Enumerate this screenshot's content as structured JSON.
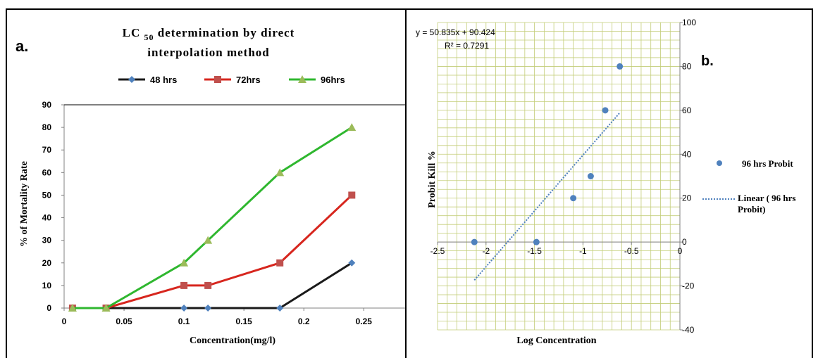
{
  "panel_a": {
    "label": "a.",
    "title_prefix": "LC ",
    "title_sub": "50",
    "title_rest": " determination by direct",
    "title_line2": "interpolation method",
    "xlabel": "Concentration(mg/l)",
    "ylabel": "% of Mortality Rate"
  },
  "panel_b": {
    "label": "b.",
    "equation": "y = 50.835x + 90.424",
    "r_squared": "R² = 0.7291",
    "xlabel": "Log Concentration",
    "ylabel": "Probit Kill %",
    "legend_points": "96 hrs Probit",
    "legend_line_1": "Linear ( 96 hrs",
    "legend_line_2": "Probit)"
  },
  "chart_data": [
    {
      "type": "line",
      "title": "LC 50 determination by direct interpolation method",
      "xlabel": "Concentration(mg/l)",
      "ylabel": "% of Mortality Rate",
      "xlim": [
        0,
        0.25
      ],
      "ylim": [
        0,
        90
      ],
      "xticks": [
        "0",
        "0.05",
        "0.1",
        "0.15",
        "0.2",
        "0.25"
      ],
      "yticks": [
        "0",
        "10",
        "20",
        "30",
        "40",
        "50",
        "60",
        "70",
        "80",
        "90"
      ],
      "legend_position": "top",
      "grid": false,
      "series": [
        {
          "name": "48 hrs",
          "color": "#1a1a1a",
          "marker": "diamond",
          "marker_color": "#4f81bd",
          "x": [
            0.007,
            0.035,
            0.1,
            0.12,
            0.18,
            0.24
          ],
          "y": [
            0,
            0,
            0,
            0,
            0,
            20
          ]
        },
        {
          "name": "72hrs",
          "color": "#d7261e",
          "marker": "square",
          "marker_color": "#c0504d",
          "x": [
            0.007,
            0.035,
            0.1,
            0.12,
            0.18,
            0.24
          ],
          "y": [
            0,
            0,
            10,
            10,
            20,
            50
          ]
        },
        {
          "name": "96hrs",
          "color": "#2fb72f",
          "marker": "triangle",
          "marker_color": "#9bbb59",
          "x": [
            0.007,
            0.035,
            0.1,
            0.12,
            0.18,
            0.24
          ],
          "y": [
            0,
            0,
            20,
            30,
            60,
            80
          ]
        }
      ]
    },
    {
      "type": "scatter",
      "xlabel": "Log Concentration",
      "ylabel": "Probit Kill %",
      "xlim": [
        -2.5,
        0
      ],
      "ylim": [
        -40,
        100
      ],
      "xticks": [
        "-2.5",
        "-2",
        "-1.5",
        "-1",
        "-0.5",
        "0"
      ],
      "yticks": [
        "-40",
        "-20",
        "0",
        "20",
        "40",
        "60",
        "80",
        "100"
      ],
      "grid": true,
      "grid_color": "#c3cd78",
      "legend_position": "right",
      "series": [
        {
          "name": "96 hrs Probit",
          "color": "#4f81bd",
          "x": [
            -2.12,
            -1.48,
            -1.1,
            -0.92,
            -0.77,
            -0.62
          ],
          "y": [
            0,
            0,
            20,
            30,
            60,
            80
          ]
        }
      ],
      "trendline": {
        "name": "Linear ( 96 hrs Probit)",
        "slope": 50.835,
        "intercept": 90.424,
        "x_range": [
          -2.12,
          -0.62
        ],
        "color": "#4f81bd",
        "equation": "y = 50.835x + 90.424",
        "r_squared": "R² = 0.7291"
      }
    }
  ]
}
